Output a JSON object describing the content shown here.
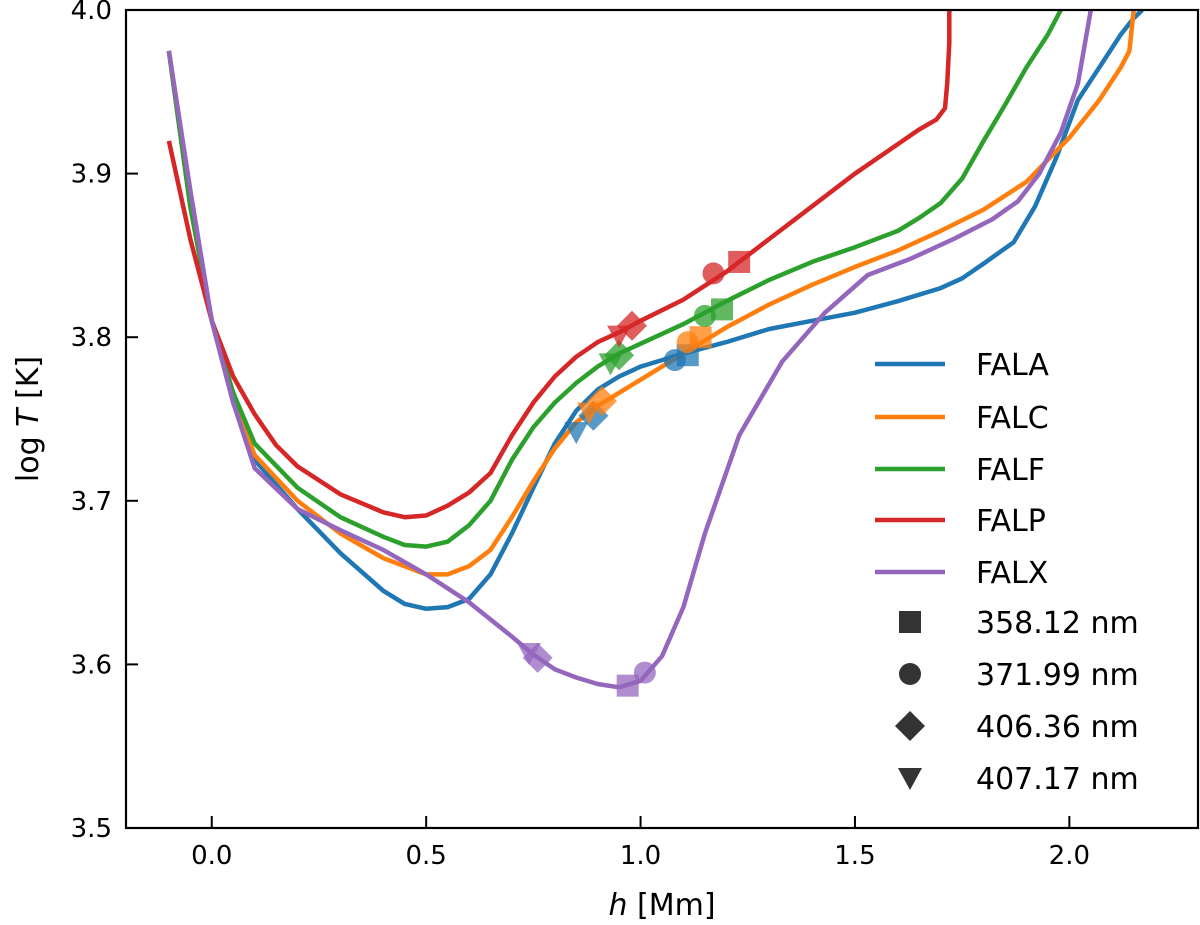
{
  "chart_data": {
    "type": "line",
    "xlabel_italic": "h",
    "xlabel_unit": " [Mm]",
    "ylabel_prefix": "log ",
    "ylabel_italic": "T",
    "ylabel_unit": " [K]",
    "xlim": [
      -0.2,
      2.3
    ],
    "ylim": [
      3.5,
      4.0
    ],
    "xticks": [
      0.0,
      0.5,
      1.0,
      1.5,
      2.0
    ],
    "xtick_labels": [
      "0.0",
      "0.5",
      "1.0",
      "1.5",
      "2.0"
    ],
    "yticks": [
      3.5,
      3.6,
      3.7,
      3.8,
      3.9,
      4.0
    ],
    "ytick_labels": [
      "3.5",
      "3.6",
      "3.7",
      "3.8",
      "3.9",
      "4.0"
    ],
    "legend_position": "lower-right",
    "series": [
      {
        "name": "FALA",
        "color": "#1f77b4",
        "x": [
          -0.1,
          -0.05,
          0.0,
          0.05,
          0.1,
          0.2,
          0.3,
          0.4,
          0.45,
          0.5,
          0.55,
          0.6,
          0.65,
          0.7,
          0.75,
          0.8,
          0.85,
          0.9,
          0.95,
          1.0,
          1.1,
          1.2,
          1.3,
          1.4,
          1.5,
          1.6,
          1.7,
          1.75,
          1.8,
          1.87,
          1.92,
          1.97,
          2.02,
          2.07,
          2.12,
          2.15,
          2.17
        ],
        "y": [
          3.975,
          3.88,
          3.81,
          3.76,
          3.725,
          3.695,
          3.668,
          3.645,
          3.637,
          3.634,
          3.635,
          3.64,
          3.655,
          3.68,
          3.708,
          3.735,
          3.755,
          3.768,
          3.776,
          3.782,
          3.79,
          3.797,
          3.805,
          3.81,
          3.815,
          3.822,
          3.83,
          3.836,
          3.845,
          3.858,
          3.88,
          3.91,
          3.945,
          3.965,
          3.985,
          3.995,
          4.0
        ]
      },
      {
        "name": "FALC",
        "color": "#ff7f0e",
        "x": [
          -0.1,
          -0.05,
          0.0,
          0.05,
          0.1,
          0.2,
          0.3,
          0.4,
          0.5,
          0.55,
          0.6,
          0.65,
          0.7,
          0.75,
          0.8,
          0.85,
          0.9,
          0.95,
          1.0,
          1.1,
          1.2,
          1.3,
          1.4,
          1.5,
          1.6,
          1.7,
          1.8,
          1.9,
          2.0,
          2.07,
          2.12,
          2.14,
          2.15
        ],
        "y": [
          3.975,
          3.88,
          3.81,
          3.762,
          3.728,
          3.7,
          3.68,
          3.665,
          3.655,
          3.655,
          3.66,
          3.67,
          3.69,
          3.712,
          3.732,
          3.748,
          3.758,
          3.766,
          3.774,
          3.79,
          3.806,
          3.82,
          3.832,
          3.843,
          3.853,
          3.865,
          3.878,
          3.895,
          3.922,
          3.945,
          3.965,
          3.975,
          4.0
        ]
      },
      {
        "name": "FALF",
        "color": "#2ca02c",
        "x": [
          -0.1,
          -0.05,
          0.0,
          0.05,
          0.1,
          0.2,
          0.3,
          0.4,
          0.45,
          0.5,
          0.55,
          0.6,
          0.65,
          0.7,
          0.75,
          0.8,
          0.85,
          0.9,
          0.95,
          1.0,
          1.1,
          1.2,
          1.3,
          1.4,
          1.5,
          1.6,
          1.65,
          1.7,
          1.75,
          1.8,
          1.85,
          1.9,
          1.95,
          1.98
        ],
        "y": [
          3.975,
          3.88,
          3.81,
          3.766,
          3.735,
          3.708,
          3.69,
          3.678,
          3.673,
          3.672,
          3.675,
          3.685,
          3.7,
          3.725,
          3.745,
          3.76,
          3.772,
          3.782,
          3.79,
          3.796,
          3.808,
          3.822,
          3.835,
          3.846,
          3.855,
          3.865,
          3.873,
          3.882,
          3.897,
          3.92,
          3.942,
          3.965,
          3.985,
          4.0
        ]
      },
      {
        "name": "FALP",
        "color": "#d62728",
        "x": [
          -0.1,
          -0.05,
          0.0,
          0.05,
          0.1,
          0.15,
          0.2,
          0.3,
          0.4,
          0.45,
          0.5,
          0.55,
          0.6,
          0.65,
          0.7,
          0.75,
          0.8,
          0.85,
          0.9,
          0.95,
          1.0,
          1.1,
          1.2,
          1.3,
          1.4,
          1.5,
          1.6,
          1.65,
          1.69,
          1.71,
          1.715,
          1.72,
          1.72
        ],
        "y": [
          3.92,
          3.86,
          3.81,
          3.776,
          3.753,
          3.734,
          3.721,
          3.704,
          3.693,
          3.69,
          3.691,
          3.697,
          3.705,
          3.717,
          3.74,
          3.76,
          3.776,
          3.788,
          3.797,
          3.803,
          3.81,
          3.823,
          3.84,
          3.86,
          3.88,
          3.9,
          3.918,
          3.927,
          3.933,
          3.94,
          3.955,
          3.98,
          4.0
        ]
      },
      {
        "name": "FALX",
        "color": "#9467bd",
        "x": [
          -0.1,
          -0.05,
          0.0,
          0.05,
          0.1,
          0.2,
          0.3,
          0.4,
          0.5,
          0.6,
          0.7,
          0.75,
          0.8,
          0.85,
          0.9,
          0.95,
          1.0,
          1.05,
          1.1,
          1.15,
          1.23,
          1.33,
          1.43,
          1.53,
          1.63,
          1.73,
          1.82,
          1.88,
          1.93,
          1.98,
          2.02,
          2.05
        ],
        "y": [
          3.975,
          3.89,
          3.81,
          3.76,
          3.72,
          3.695,
          3.682,
          3.67,
          3.655,
          3.638,
          3.617,
          3.606,
          3.597,
          3.592,
          3.588,
          3.586,
          3.59,
          3.605,
          3.635,
          3.68,
          3.74,
          3.785,
          3.815,
          3.838,
          3.848,
          3.86,
          3.872,
          3.883,
          3.9,
          3.925,
          3.955,
          4.0
        ]
      }
    ],
    "markers": [
      {
        "series": "FALA",
        "shape": "square",
        "x": 1.11,
        "y": 3.789
      },
      {
        "series": "FALA",
        "shape": "circle",
        "x": 1.08,
        "y": 3.786
      },
      {
        "series": "FALA",
        "shape": "diamond",
        "x": 0.89,
        "y": 3.752
      },
      {
        "series": "FALA",
        "shape": "triangle-down",
        "x": 0.85,
        "y": 3.742
      },
      {
        "series": "FALC",
        "shape": "square",
        "x": 1.14,
        "y": 3.8
      },
      {
        "series": "FALC",
        "shape": "circle",
        "x": 1.11,
        "y": 3.797
      },
      {
        "series": "FALC",
        "shape": "diamond",
        "x": 0.91,
        "y": 3.761
      },
      {
        "series": "FALC",
        "shape": "triangle-down",
        "x": 0.88,
        "y": 3.754
      },
      {
        "series": "FALF",
        "shape": "square",
        "x": 1.19,
        "y": 3.817
      },
      {
        "series": "FALF",
        "shape": "circle",
        "x": 1.15,
        "y": 3.813
      },
      {
        "series": "FALF",
        "shape": "diamond",
        "x": 0.95,
        "y": 3.789
      },
      {
        "series": "FALF",
        "shape": "triangle-down",
        "x": 0.93,
        "y": 3.784
      },
      {
        "series": "FALP",
        "shape": "square",
        "x": 1.23,
        "y": 3.846
      },
      {
        "series": "FALP",
        "shape": "circle",
        "x": 1.17,
        "y": 3.839
      },
      {
        "series": "FALP",
        "shape": "diamond",
        "x": 0.98,
        "y": 3.807
      },
      {
        "series": "FALP",
        "shape": "triangle-down",
        "x": 0.95,
        "y": 3.801
      },
      {
        "series": "FALX",
        "shape": "square",
        "x": 0.97,
        "y": 3.587
      },
      {
        "series": "FALX",
        "shape": "circle",
        "x": 1.01,
        "y": 3.595
      },
      {
        "series": "FALX",
        "shape": "diamond",
        "x": 0.76,
        "y": 3.604
      },
      {
        "series": "FALX",
        "shape": "triangle-down",
        "x": 0.74,
        "y": 3.607
      }
    ],
    "marker_legend": [
      {
        "shape": "square",
        "label": "358.12 nm"
      },
      {
        "shape": "circle",
        "label": "371.99 nm"
      },
      {
        "shape": "diamond",
        "label": "406.36 nm"
      },
      {
        "shape": "triangle-down",
        "label": "407.17 nm"
      }
    ],
    "marker_legend_color": "#333333"
  }
}
